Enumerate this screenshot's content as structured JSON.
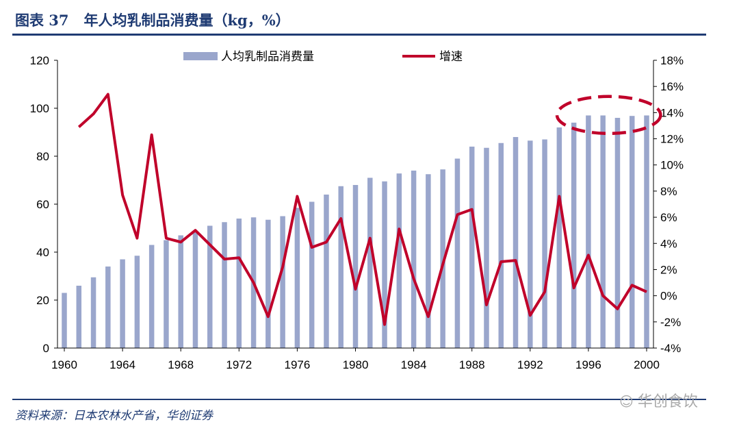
{
  "header": {
    "title": "图表 37   年人均乳制品消费量（kg，%）"
  },
  "footer": {
    "source": "资料来源：日本农林水产省，华创证券",
    "watermark": "华创食饮",
    "watermark_icon": "wechat-icon"
  },
  "colors": {
    "bar": "#9aa6cc",
    "line": "#c0002a",
    "brand": "#1f3b73",
    "highlight": "#c0002a"
  },
  "chart_data": {
    "type": "bar+line",
    "title": "",
    "xlabel": "",
    "ylabel_left": "",
    "ylabel_right": "",
    "x": [
      1960,
      1961,
      1962,
      1963,
      1964,
      1965,
      1966,
      1967,
      1968,
      1969,
      1970,
      1971,
      1972,
      1973,
      1974,
      1975,
      1976,
      1977,
      1978,
      1979,
      1980,
      1981,
      1982,
      1983,
      1984,
      1985,
      1986,
      1987,
      1988,
      1989,
      1990,
      1991,
      1992,
      1993,
      1994,
      1995,
      1996,
      1997,
      1998,
      1999,
      2000
    ],
    "x_ticks": [
      "1960",
      "1964",
      "1968",
      "1972",
      "1976",
      "1980",
      "1984",
      "1988",
      "1992",
      "1996",
      "2000"
    ],
    "y_left_ticks": [
      "0",
      "20",
      "40",
      "60",
      "80",
      "100",
      "120"
    ],
    "y_right_ticks": [
      "-4%",
      "-2%",
      "0%",
      "2%",
      "4%",
      "6%",
      "8%",
      "10%",
      "12%",
      "14%",
      "16%",
      "18%"
    ],
    "ylim_left": [
      0,
      120
    ],
    "ylim_right": [
      -4,
      18
    ],
    "series": [
      {
        "name": "人均乳制品消费量",
        "type": "bar",
        "axis": "left",
        "values": [
          23,
          26,
          29.5,
          34,
          37,
          38.5,
          43,
          45,
          47,
          48.5,
          51,
          52.5,
          54,
          54.5,
          53.5,
          55,
          58.5,
          61,
          64,
          67.5,
          68,
          71,
          69.5,
          72.8,
          74,
          72.5,
          74.5,
          79,
          84,
          83.5,
          85.5,
          88,
          86.5,
          87,
          92,
          94,
          97,
          97,
          96,
          96.8,
          97
        ]
      },
      {
        "name": "增速",
        "type": "line",
        "axis": "right",
        "values": [
          null,
          12.9,
          13.9,
          15.4,
          7.7,
          4.4,
          12.3,
          4.4,
          4.1,
          5,
          3.9,
          2.8,
          2.9,
          1,
          -1.6,
          2.2,
          7.6,
          3.7,
          4.1,
          5.9,
          0.5,
          4.4,
          -2.2,
          5.1,
          1.3,
          -1.6,
          2.4,
          6.2,
          6.6,
          -0.7,
          2.6,
          2.7,
          -1.5,
          0.3,
          7.6,
          0.6,
          3.1,
          0,
          -1,
          0.8,
          0.3
        ]
      }
    ],
    "legend": [
      "人均乳制品消费量",
      "增速"
    ],
    "legend_position": "top",
    "annotation": "dashed ellipse highlighting 1995-2000 plateau"
  }
}
